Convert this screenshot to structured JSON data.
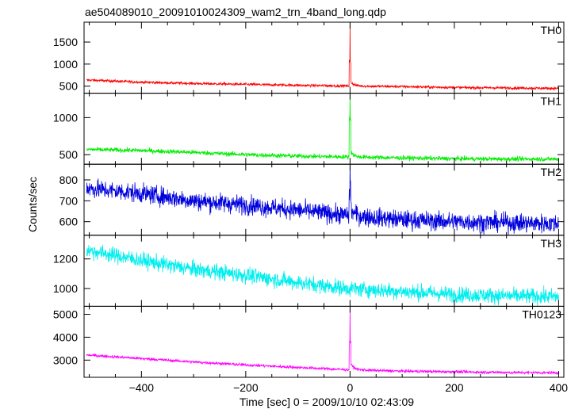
{
  "chart_data": {
    "type": "line",
    "title": "ae504089010_20091010024309_wam2_trn_4band_long.qdp",
    "xlabel": "Time [sec] 0 = 2009/10/10 02:43:09",
    "ylabel": "Counts/sec",
    "xlim": [
      -510,
      410
    ],
    "x_ticks": [
      -400,
      -200,
      0,
      200,
      400
    ],
    "panels": [
      {
        "name": "TH0",
        "color": "#ff0000",
        "ylim": [
          340,
          1950
        ],
        "y_ticks": [
          500,
          1000,
          1500
        ],
        "baseline": [
          [
            -505,
            640
          ],
          [
            -400,
            590
          ],
          [
            -300,
            560
          ],
          [
            -200,
            540
          ],
          [
            -100,
            520
          ],
          [
            -5,
            505
          ],
          [
            100,
            490
          ],
          [
            200,
            470
          ],
          [
            300,
            460
          ],
          [
            400,
            450
          ]
        ],
        "noise": 22,
        "burst": {
          "t": 0,
          "peak": 1950,
          "secondary": 1050,
          "tail": 120,
          "decay": 6
        }
      },
      {
        "name": "TH1",
        "color": "#00ee00",
        "ylim": [
          370,
          1330
        ],
        "y_ticks": [
          500,
          1000
        ],
        "baseline": [
          [
            -505,
            570
          ],
          [
            -400,
            555
          ],
          [
            -300,
            530
          ],
          [
            -200,
            500
          ],
          [
            -100,
            480
          ],
          [
            -5,
            470
          ],
          [
            100,
            455
          ],
          [
            200,
            445
          ],
          [
            300,
            440
          ],
          [
            400,
            440
          ]
        ],
        "noise": 22,
        "burst": {
          "t": 0,
          "peak": 1330,
          "secondary": 1000,
          "tail": 90,
          "decay": 6
        }
      },
      {
        "name": "TH2",
        "color": "#0000dd",
        "ylim": [
          535,
          875
        ],
        "y_ticks": [
          600,
          700,
          800
        ],
        "baseline": [
          [
            -505,
            760
          ],
          [
            -400,
            735
          ],
          [
            -300,
            700
          ],
          [
            -200,
            680
          ],
          [
            -100,
            655
          ],
          [
            -5,
            630
          ],
          [
            100,
            610
          ],
          [
            200,
            600
          ],
          [
            300,
            595
          ],
          [
            400,
            590
          ]
        ],
        "noise": 32,
        "burst": {
          "t": 0,
          "peak": 870,
          "secondary": 760,
          "tail": 35,
          "decay": 8
        }
      },
      {
        "name": "TH3",
        "color": "#00eeee",
        "ylim": [
          880,
          1360
        ],
        "y_ticks": [
          1000,
          1200
        ],
        "baseline": [
          [
            -505,
            1260
          ],
          [
            -400,
            1190
          ],
          [
            -300,
            1130
          ],
          [
            -200,
            1090
          ],
          [
            -100,
            1040
          ],
          [
            -5,
            1000
          ],
          [
            100,
            980
          ],
          [
            200,
            960
          ],
          [
            300,
            950
          ],
          [
            400,
            945
          ]
        ],
        "noise": 38,
        "burst": null
      },
      {
        "name": "TH0123",
        "color": "#ff00ff",
        "ylim": [
          2250,
          5350
        ],
        "y_ticks": [
          3000,
          4000,
          5000
        ],
        "baseline": [
          [
            -505,
            3220
          ],
          [
            -400,
            3070
          ],
          [
            -300,
            2920
          ],
          [
            -200,
            2790
          ],
          [
            -100,
            2680
          ],
          [
            -5,
            2580
          ],
          [
            100,
            2520
          ],
          [
            200,
            2490
          ],
          [
            300,
            2460
          ],
          [
            400,
            2450
          ]
        ],
        "noise": 45,
        "burst": {
          "t": 0,
          "peak": 5300,
          "secondary": 3800,
          "tail": 300,
          "decay": 7
        }
      }
    ]
  }
}
